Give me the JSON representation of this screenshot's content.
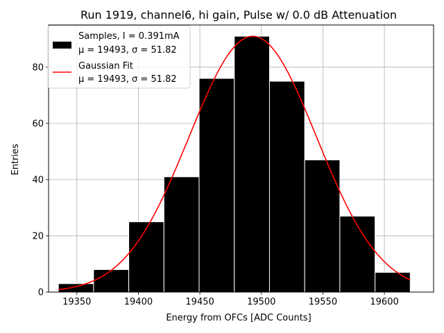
{
  "chart_data": {
    "type": "bar",
    "title": "Run 1919, channel6, hi gain, Pulse w/ 0.0 dB Attenuation",
    "xlabel": "Energy from OFCs [ADC Counts]",
    "ylabel": "Entries",
    "xlim": [
      19327,
      19640
    ],
    "ylim": [
      0,
      95
    ],
    "xticks": [
      "19350",
      "19400",
      "19450",
      "19500",
      "19550",
      "19600"
    ],
    "yticks": [
      "0",
      "20",
      "40",
      "60",
      "80"
    ],
    "grid": true,
    "legend_position": "top-left",
    "histogram": {
      "name_line1": "Samples, I = 0.391mA",
      "name_line2": "μ = 19493, σ = 51.82",
      "color": "#000000",
      "bin_edges": [
        19335,
        19363.6,
        19392.2,
        19420.8,
        19449.4,
        19478.0,
        19506.6,
        19535.2,
        19563.8,
        19592.4,
        19621
      ],
      "counts": [
        3,
        8,
        25,
        41,
        76,
        91,
        75,
        47,
        27,
        7
      ]
    },
    "fit": {
      "name_line1": "Gaussian Fit",
      "name_line2": "μ = 19493, σ = 51.82",
      "color": "#ff0000",
      "mu": 19493,
      "sigma": 51.82,
      "amplitude": 91,
      "x_range": [
        19335,
        19621
      ]
    }
  }
}
